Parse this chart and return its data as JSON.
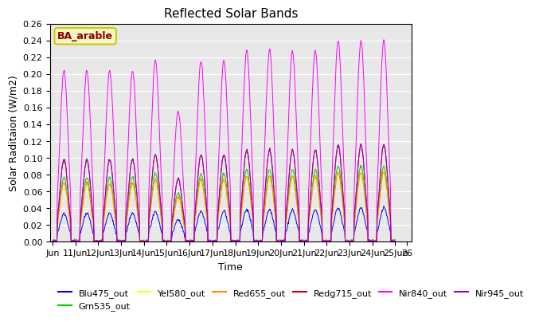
{
  "title": "Reflected Solar Bands",
  "xlabel": "Time",
  "ylabel": "Solar Raditaion (W/m2)",
  "annotation": "BA_arable",
  "ylim": [
    0,
    0.26
  ],
  "total_days": 15,
  "x_tick_positions": [
    0,
    1,
    2,
    3,
    4,
    5,
    6,
    7,
    8,
    9,
    10,
    11,
    12,
    13,
    14,
    15
  ],
  "x_tick_labels": [
    "Jun",
    "11Jun",
    "12Jun",
    "13Jun",
    "14Jun",
    "15Jun",
    "16Jun",
    "17Jun",
    "18Jun",
    "19Jun",
    "20Jun",
    "21Jun",
    "22Jun",
    "23Jun",
    "24Jun",
    "25Jun"
  ],
  "x_tick_extra_pos": 15.5,
  "x_tick_extra_label": "26",
  "series": [
    {
      "name": "Blu475_out",
      "color": "#0000ff",
      "scale": 0.04
    },
    {
      "name": "Grn535_out",
      "color": "#00cc00",
      "scale": 0.09
    },
    {
      "name": "Yel580_out",
      "color": "#ffff00",
      "scale": 0.08
    },
    {
      "name": "Red655_out",
      "color": "#ff8800",
      "scale": 0.082
    },
    {
      "name": "Redg715_out",
      "color": "#cc0000",
      "scale": 0.115
    },
    {
      "name": "Nir840_out",
      "color": "#ff00ff",
      "scale": 0.24
    },
    {
      "name": "Nir945_out",
      "color": "#9900cc",
      "scale": 0.115
    }
  ],
  "day_scales": [
    0.85,
    0.85,
    0.85,
    0.85,
    0.9,
    0.65,
    0.9,
    0.9,
    0.95,
    0.95,
    0.95,
    0.95,
    1.0,
    1.0,
    1.0
  ],
  "bg_color": "#e8e8e8",
  "grid_color": "#ffffff",
  "yticks": [
    0.0,
    0.02,
    0.04,
    0.06,
    0.08,
    0.1,
    0.12,
    0.14,
    0.16,
    0.18,
    0.2,
    0.22,
    0.24,
    0.26
  ]
}
